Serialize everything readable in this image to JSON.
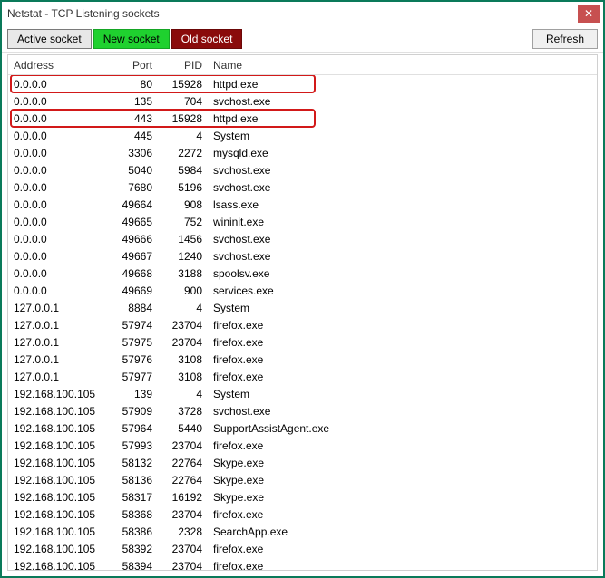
{
  "window": {
    "title": "Netstat - TCP Listening sockets",
    "close_glyph": "✕"
  },
  "toolbar": {
    "active_label": "Active socket",
    "new_label": "New socket",
    "old_label": "Old socket",
    "refresh_label": "Refresh"
  },
  "table": {
    "columns": {
      "address": "Address",
      "port": "Port",
      "pid": "PID",
      "name": "Name"
    },
    "highlight_color": "#d21919",
    "rows": [
      {
        "address": "0.0.0.0",
        "port": "80",
        "pid": "15928",
        "name": "httpd.exe",
        "highlight": true
      },
      {
        "address": "0.0.0.0",
        "port": "135",
        "pid": "704",
        "name": "svchost.exe",
        "highlight": false
      },
      {
        "address": "0.0.0.0",
        "port": "443",
        "pid": "15928",
        "name": "httpd.exe",
        "highlight": true
      },
      {
        "address": "0.0.0.0",
        "port": "445",
        "pid": "4",
        "name": "System",
        "highlight": false
      },
      {
        "address": "0.0.0.0",
        "port": "3306",
        "pid": "2272",
        "name": "mysqld.exe",
        "highlight": false
      },
      {
        "address": "0.0.0.0",
        "port": "5040",
        "pid": "5984",
        "name": "svchost.exe",
        "highlight": false
      },
      {
        "address": "0.0.0.0",
        "port": "7680",
        "pid": "5196",
        "name": "svchost.exe",
        "highlight": false
      },
      {
        "address": "0.0.0.0",
        "port": "49664",
        "pid": "908",
        "name": "lsass.exe",
        "highlight": false
      },
      {
        "address": "0.0.0.0",
        "port": "49665",
        "pid": "752",
        "name": "wininit.exe",
        "highlight": false
      },
      {
        "address": "0.0.0.0",
        "port": "49666",
        "pid": "1456",
        "name": "svchost.exe",
        "highlight": false
      },
      {
        "address": "0.0.0.0",
        "port": "49667",
        "pid": "1240",
        "name": "svchost.exe",
        "highlight": false
      },
      {
        "address": "0.0.0.0",
        "port": "49668",
        "pid": "3188",
        "name": "spoolsv.exe",
        "highlight": false
      },
      {
        "address": "0.0.0.0",
        "port": "49669",
        "pid": "900",
        "name": "services.exe",
        "highlight": false
      },
      {
        "address": "127.0.0.1",
        "port": "8884",
        "pid": "4",
        "name": "System",
        "highlight": false
      },
      {
        "address": "127.0.0.1",
        "port": "57974",
        "pid": "23704",
        "name": "firefox.exe",
        "highlight": false
      },
      {
        "address": "127.0.0.1",
        "port": "57975",
        "pid": "23704",
        "name": "firefox.exe",
        "highlight": false
      },
      {
        "address": "127.0.0.1",
        "port": "57976",
        "pid": "3108",
        "name": "firefox.exe",
        "highlight": false
      },
      {
        "address": "127.0.0.1",
        "port": "57977",
        "pid": "3108",
        "name": "firefox.exe",
        "highlight": false
      },
      {
        "address": "192.168.100.105",
        "port": "139",
        "pid": "4",
        "name": "System",
        "highlight": false
      },
      {
        "address": "192.168.100.105",
        "port": "57909",
        "pid": "3728",
        "name": "svchost.exe",
        "highlight": false
      },
      {
        "address": "192.168.100.105",
        "port": "57964",
        "pid": "5440",
        "name": "SupportAssistAgent.exe",
        "highlight": false
      },
      {
        "address": "192.168.100.105",
        "port": "57993",
        "pid": "23704",
        "name": "firefox.exe",
        "highlight": false
      },
      {
        "address": "192.168.100.105",
        "port": "58132",
        "pid": "22764",
        "name": "Skype.exe",
        "highlight": false
      },
      {
        "address": "192.168.100.105",
        "port": "58136",
        "pid": "22764",
        "name": "Skype.exe",
        "highlight": false
      },
      {
        "address": "192.168.100.105",
        "port": "58317",
        "pid": "16192",
        "name": "Skype.exe",
        "highlight": false
      },
      {
        "address": "192.168.100.105",
        "port": "58368",
        "pid": "23704",
        "name": "firefox.exe",
        "highlight": false
      },
      {
        "address": "192.168.100.105",
        "port": "58386",
        "pid": "2328",
        "name": "SearchApp.exe",
        "highlight": false
      },
      {
        "address": "192.168.100.105",
        "port": "58392",
        "pid": "23704",
        "name": "firefox.exe",
        "highlight": false
      },
      {
        "address": "192.168.100.105",
        "port": "58394",
        "pid": "23704",
        "name": "firefox.exe",
        "highlight": false
      }
    ]
  },
  "colors": {
    "window_border": "#0a7a5a",
    "close_bg": "#c75050",
    "new_bg": "#1fd12f",
    "old_bg": "#8a0b0b"
  }
}
